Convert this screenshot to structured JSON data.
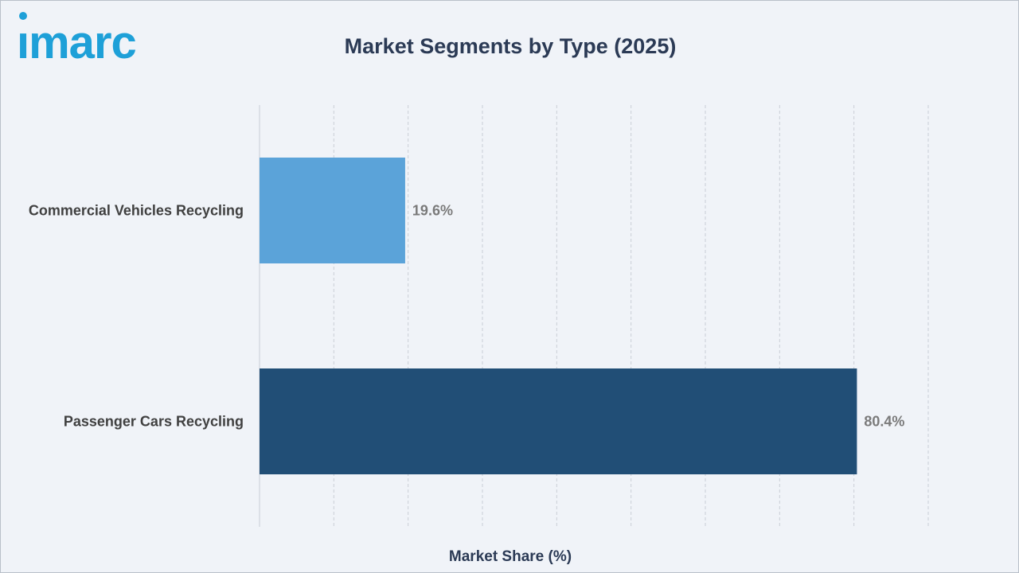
{
  "header": {
    "logo_text": "imarc",
    "title": "Market Segments by Type (2025)"
  },
  "colors": {
    "title": "#2b3a55",
    "logo": "#1ea0d8",
    "grid": "#c9ced6"
  },
  "chart_data": {
    "type": "bar",
    "orientation": "horizontal",
    "title": "Market Segments by Type (2025)",
    "xlabel": "Market Share (%)",
    "ylabel": "",
    "xlim": [
      0,
      90
    ],
    "grid": true,
    "categories": [
      "Commercial Vehicles Recycling",
      "Passenger Cars Recycling"
    ],
    "values": [
      19.6,
      80.4
    ],
    "value_labels": [
      "19.6%",
      "80.4%"
    ],
    "bar_colors": [
      "#5ba3d9",
      "#214e76"
    ]
  }
}
